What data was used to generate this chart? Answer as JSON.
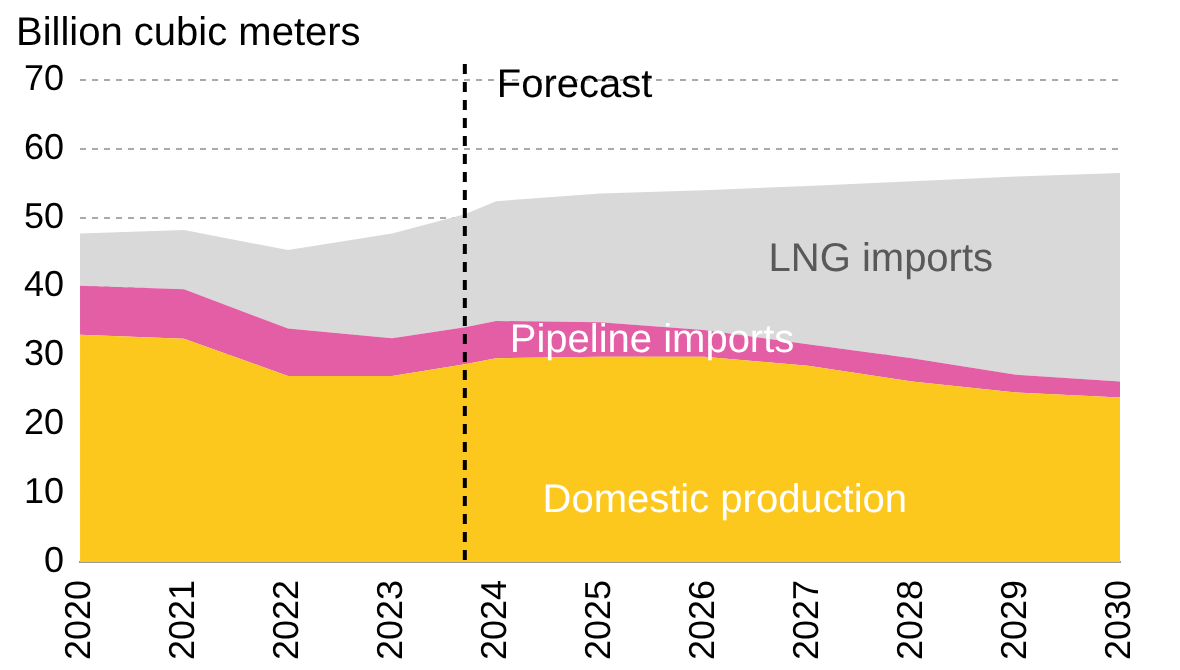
{
  "chart_data": {
    "type": "area",
    "stacked": true,
    "ylabel": "Billion cubic meters",
    "x": [
      2020,
      2021,
      2022,
      2023,
      2023.7,
      2024,
      2025,
      2026,
      2027,
      2028,
      2029,
      2030
    ],
    "series": [
      {
        "name": "Domestic production",
        "color": "#fdc81e",
        "values": [
          33,
          32.4,
          27,
          27,
          28.7,
          29.6,
          29.8,
          29.8,
          28.5,
          26.2,
          24.6,
          23.9
        ]
      },
      {
        "name": "Pipeline imports",
        "color": "#e45ea5",
        "values": [
          7.1,
          7.2,
          6.9,
          5.5,
          5.4,
          5.4,
          5,
          3.9,
          3.1,
          3.4,
          2.6,
          2.3
        ]
      },
      {
        "name": "LNG imports",
        "color": "#d9d9d9",
        "values": [
          7.6,
          8.6,
          11.4,
          15.2,
          16.4,
          17.4,
          18.7,
          20.3,
          23,
          25.7,
          28.8,
          30.3
        ]
      }
    ],
    "xlim": [
      2020,
      2030
    ],
    "xticks": [
      2020,
      2021,
      2022,
      2023,
      2024,
      2025,
      2026,
      2027,
      2028,
      2029,
      2030
    ],
    "ylim": [
      0,
      70
    ],
    "yticks": [
      0,
      10,
      20,
      30,
      40,
      50,
      60,
      70
    ],
    "ref_lines": [
      {
        "axis": "x",
        "value": 2023.7,
        "label": "Forecast",
        "color": "#000000",
        "line_style": "dashed"
      }
    ],
    "grid": "y",
    "legend": false
  }
}
